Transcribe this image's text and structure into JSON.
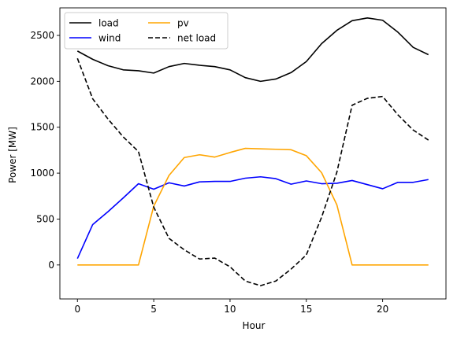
{
  "chart_data": {
    "type": "line",
    "title": "",
    "xlabel": "Hour",
    "ylabel": "Power [MW]",
    "xlim": [
      -1.15,
      24.15
    ],
    "ylim": [
      -370,
      2800
    ],
    "xticks": [
      0,
      5,
      10,
      15,
      20
    ],
    "yticks": [
      0,
      500,
      1000,
      1500,
      2000,
      2500
    ],
    "grid": false,
    "legend_position": "top-left",
    "legend_columns": 2,
    "x": [
      0,
      1,
      2,
      3,
      4,
      5,
      6,
      7,
      8,
      9,
      10,
      11,
      12,
      13,
      14,
      15,
      16,
      17,
      18,
      19,
      20,
      21,
      22,
      23
    ],
    "series": [
      {
        "name": "load",
        "color": "#000000",
        "style": "solid",
        "values": [
          2330,
          2240,
          2170,
          2125,
          2115,
          2090,
          2160,
          2195,
          2175,
          2160,
          2125,
          2040,
          2000,
          2025,
          2095,
          2215,
          2410,
          2555,
          2660,
          2690,
          2665,
          2535,
          2370,
          2290
        ]
      },
      {
        "name": "wind",
        "color": "#0000ff",
        "style": "solid",
        "values": [
          70,
          440,
          580,
          730,
          885,
          825,
          895,
          860,
          905,
          910,
          910,
          945,
          960,
          940,
          880,
          915,
          885,
          890,
          920,
          875,
          830,
          900,
          900,
          930
        ]
      },
      {
        "name": "pv",
        "color": "#ffa500",
        "style": "solid",
        "values": [
          0,
          0,
          0,
          0,
          0,
          640,
          975,
          1170,
          1200,
          1175,
          1225,
          1270,
          1265,
          1260,
          1255,
          1190,
          1005,
          655,
          0,
          0,
          0,
          0,
          0,
          0
        ]
      },
      {
        "name": "net load",
        "color": "#000000",
        "style": "dashed",
        "values": [
          2250,
          1810,
          1590,
          1395,
          1235,
          630,
          290,
          165,
          65,
          75,
          -20,
          -175,
          -225,
          -175,
          -45,
          110,
          520,
          1010,
          1740,
          1815,
          1835,
          1635,
          1470,
          1360
        ]
      }
    ]
  }
}
